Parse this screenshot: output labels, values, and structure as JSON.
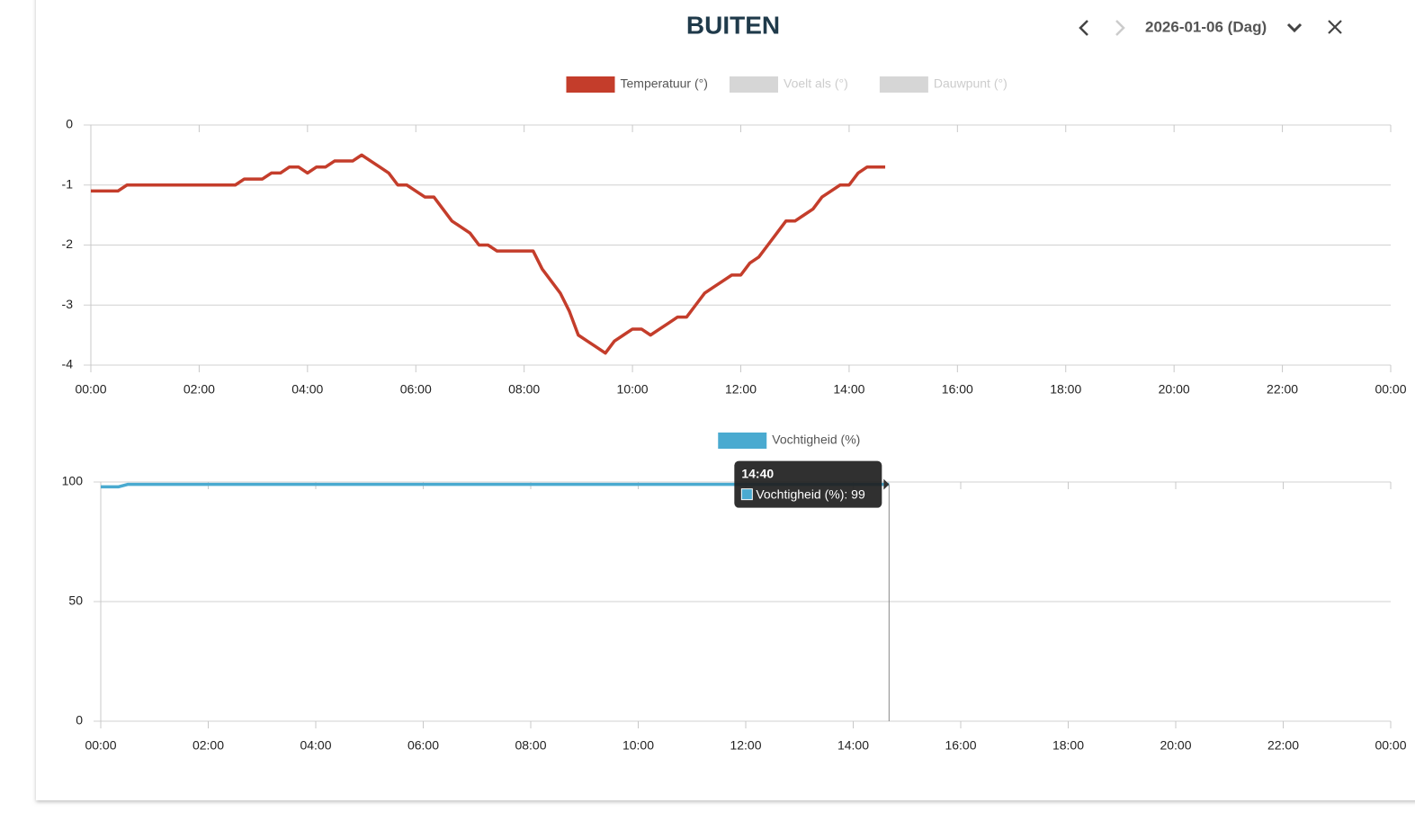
{
  "header": {
    "title": "BUITEN",
    "period": "2026-01-06 (Dag)"
  },
  "chart_data": [
    {
      "type": "line",
      "series": [
        {
          "name": "Temperatuur (°)",
          "color": "#c43d2b",
          "values": [
            -1.1,
            -1.1,
            -1.1,
            -1.1,
            -1.0,
            -1.0,
            -1.0,
            -1.0,
            -1.0,
            -1.0,
            -1.0,
            -1.0,
            -1.0,
            -1.0,
            -1.0,
            -1.0,
            -1.0,
            -0.9,
            -0.9,
            -0.9,
            -0.8,
            -0.8,
            -0.7,
            -0.7,
            -0.8,
            -0.7,
            -0.7,
            -0.6,
            -0.6,
            -0.6,
            -0.5,
            -0.6,
            -0.7,
            -0.8,
            -1.0,
            -1.0,
            -1.1,
            -1.2,
            -1.2,
            -1.4,
            -1.6,
            -1.7,
            -1.8,
            -2.0,
            -2.0,
            -2.1,
            -2.1,
            -2.1,
            -2.1,
            -2.1,
            -2.4,
            -2.6,
            -2.8,
            -3.1,
            -3.5,
            -3.6,
            -3.7,
            -3.8,
            -3.6,
            -3.5,
            -3.4,
            -3.4,
            -3.5,
            -3.4,
            -3.3,
            -3.2,
            -3.2,
            -3.0,
            -2.8,
            -2.7,
            -2.6,
            -2.5,
            -2.5,
            -2.3,
            -2.2,
            -2.0,
            -1.8,
            -1.6,
            -1.6,
            -1.5,
            -1.4,
            -1.2,
            -1.1,
            -1.0,
            -1.0,
            -0.8,
            -0.7,
            -0.7,
            -0.7
          ]
        }
      ],
      "hidden_series": [
        {
          "name": "Voelt als (°)"
        },
        {
          "name": "Dauwpunt (°)"
        }
      ],
      "x": [
        0,
        10,
        20,
        30,
        40,
        50,
        60,
        70,
        80,
        90,
        100,
        110,
        120,
        130,
        140,
        150,
        160,
        170,
        180,
        190,
        200,
        210,
        220,
        230,
        240,
        250,
        260,
        270,
        280,
        290,
        300,
        310,
        320,
        330,
        340,
        350,
        360,
        370,
        380,
        390,
        400,
        410,
        420,
        430,
        440,
        450,
        460,
        470,
        480,
        490,
        500,
        510,
        520,
        530,
        540,
        550,
        560,
        570,
        580,
        590,
        600,
        610,
        620,
        630,
        640,
        650,
        660,
        670,
        680,
        690,
        700,
        710,
        720,
        730,
        740,
        750,
        760,
        770,
        780,
        790,
        800,
        810,
        820,
        830,
        840,
        850,
        860,
        870,
        880
      ],
      "xlim": [
        0,
        1440
      ],
      "xticks": [
        {
          "value": 0,
          "label": "00:00"
        },
        {
          "value": 120,
          "label": "02:00"
        },
        {
          "value": 240,
          "label": "04:00"
        },
        {
          "value": 360,
          "label": "06:00"
        },
        {
          "value": 480,
          "label": "08:00"
        },
        {
          "value": 600,
          "label": "10:00"
        },
        {
          "value": 720,
          "label": "12:00"
        },
        {
          "value": 840,
          "label": "14:00"
        },
        {
          "value": 960,
          "label": "16:00"
        },
        {
          "value": 1080,
          "label": "18:00"
        },
        {
          "value": 1200,
          "label": "20:00"
        },
        {
          "value": 1320,
          "label": "22:00"
        },
        {
          "value": 1440,
          "label": "00:00"
        }
      ],
      "ylim": [
        -4,
        0
      ],
      "yticks": [
        -4,
        -3,
        -2,
        -1,
        0
      ],
      "grid": true
    },
    {
      "type": "line",
      "series": [
        {
          "name": "Vochtigheid (%)",
          "color": "#4aaad0",
          "values": [
            98,
            98,
            98,
            99,
            99,
            99,
            99,
            99,
            99,
            99,
            99,
            99,
            99,
            99,
            99,
            99,
            99,
            99,
            99,
            99,
            99,
            99,
            99,
            99,
            99,
            99,
            99,
            99,
            99,
            99,
            99,
            99,
            99,
            99,
            99,
            99,
            99,
            99,
            99,
            99,
            99,
            99,
            99,
            99,
            99,
            99,
            99,
            99,
            99,
            99,
            99,
            99,
            99,
            99,
            99,
            99,
            99,
            99,
            99,
            99,
            99,
            99,
            99,
            99,
            99,
            99,
            99,
            99,
            99,
            99,
            99,
            99,
            99,
            99,
            99,
            99,
            99,
            99,
            99,
            99,
            99,
            99,
            99,
            99,
            99,
            99,
            99,
            99,
            99
          ]
        }
      ],
      "x": [
        0,
        10,
        20,
        30,
        40,
        50,
        60,
        70,
        80,
        90,
        100,
        110,
        120,
        130,
        140,
        150,
        160,
        170,
        180,
        190,
        200,
        210,
        220,
        230,
        240,
        250,
        260,
        270,
        280,
        290,
        300,
        310,
        320,
        330,
        340,
        350,
        360,
        370,
        380,
        390,
        400,
        410,
        420,
        430,
        440,
        450,
        460,
        470,
        480,
        490,
        500,
        510,
        520,
        530,
        540,
        550,
        560,
        570,
        580,
        590,
        600,
        610,
        620,
        630,
        640,
        650,
        660,
        670,
        680,
        690,
        700,
        710,
        720,
        730,
        740,
        750,
        760,
        770,
        780,
        790,
        800,
        810,
        820,
        830,
        840,
        850,
        860,
        870,
        880
      ],
      "xlim": [
        0,
        1440
      ],
      "xticks": [
        {
          "value": 0,
          "label": "00:00"
        },
        {
          "value": 120,
          "label": "02:00"
        },
        {
          "value": 240,
          "label": "04:00"
        },
        {
          "value": 360,
          "label": "06:00"
        },
        {
          "value": 480,
          "label": "08:00"
        },
        {
          "value": 600,
          "label": "10:00"
        },
        {
          "value": 720,
          "label": "12:00"
        },
        {
          "value": 840,
          "label": "14:00"
        },
        {
          "value": 960,
          "label": "16:00"
        },
        {
          "value": 1080,
          "label": "18:00"
        },
        {
          "value": 1200,
          "label": "20:00"
        },
        {
          "value": 1320,
          "label": "22:00"
        },
        {
          "value": 1440,
          "label": "00:00"
        }
      ],
      "ylim": [
        0,
        100
      ],
      "yticks": [
        0,
        50,
        100
      ],
      "grid": true,
      "tooltip": {
        "title": "14:40",
        "text": "Vochtigheid (%): 99"
      }
    }
  ]
}
